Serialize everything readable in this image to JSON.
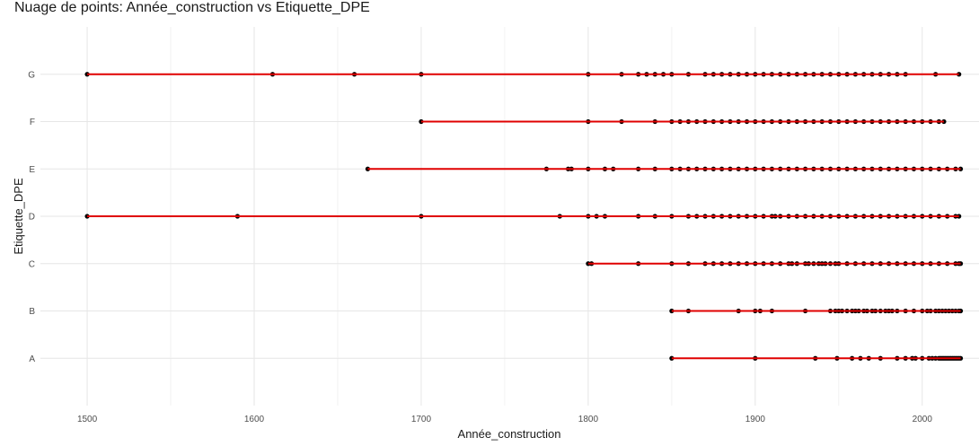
{
  "chart_data": {
    "type": "scatter",
    "title": "Nuage de points: Année_construction vs Etiquette_DPE",
    "xlabel": "Année_construction",
    "ylabel": "Etiquette_DPE",
    "xlim": [
      1472,
      2034
    ],
    "xticks": [
      1500,
      1600,
      1700,
      1800,
      1900,
      2000
    ],
    "categories": [
      "A",
      "B",
      "C",
      "D",
      "E",
      "F",
      "G"
    ],
    "grid": true,
    "point_color": "#000000",
    "line_color": "#e00000",
    "series": [
      {
        "category": "A",
        "x": [
          1850,
          1900,
          1936,
          1949,
          1958,
          1963,
          1968,
          1975,
          1985,
          1990,
          1994,
          1996,
          2000,
          2004,
          2006,
          2008,
          2010,
          2011,
          2012,
          2013,
          2014,
          2015,
          2016,
          2017,
          2018,
          2019,
          2020,
          2021,
          2022,
          2023
        ]
      },
      {
        "category": "B",
        "x": [
          1850,
          1860,
          1890,
          1900,
          1903,
          1910,
          1930,
          1945,
          1948,
          1950,
          1952,
          1955,
          1958,
          1960,
          1962,
          1965,
          1967,
          1970,
          1972,
          1975,
          1978,
          1980,
          1982,
          1985,
          1990,
          1995,
          2000,
          2003,
          2005,
          2008,
          2010,
          2012,
          2014,
          2016,
          2018,
          2020,
          2022,
          2023
        ]
      },
      {
        "category": "C",
        "x": [
          1800,
          1802,
          1830,
          1850,
          1860,
          1870,
          1875,
          1880,
          1885,
          1890,
          1895,
          1900,
          1905,
          1910,
          1915,
          1920,
          1922,
          1925,
          1930,
          1932,
          1935,
          1938,
          1940,
          1942,
          1945,
          1948,
          1950,
          1955,
          1960,
          1965,
          1970,
          1975,
          1980,
          1985,
          1990,
          1995,
          2000,
          2005,
          2010,
          2015,
          2020,
          2022,
          2023
        ]
      },
      {
        "category": "D",
        "x": [
          1500,
          1590,
          1700,
          1783,
          1800,
          1805,
          1810,
          1830,
          1840,
          1850,
          1860,
          1865,
          1870,
          1875,
          1880,
          1885,
          1890,
          1895,
          1900,
          1905,
          1910,
          1912,
          1915,
          1920,
          1925,
          1930,
          1935,
          1940,
          1945,
          1950,
          1955,
          1960,
          1965,
          1970,
          1975,
          1980,
          1985,
          1990,
          1995,
          2000,
          2005,
          2010,
          2015,
          2020,
          2022
        ]
      },
      {
        "category": "E",
        "x": [
          1668,
          1775,
          1788,
          1790,
          1800,
          1810,
          1815,
          1830,
          1840,
          1850,
          1855,
          1860,
          1865,
          1870,
          1875,
          1880,
          1885,
          1890,
          1895,
          1900,
          1905,
          1910,
          1915,
          1920,
          1925,
          1930,
          1935,
          1940,
          1945,
          1950,
          1955,
          1960,
          1965,
          1970,
          1975,
          1980,
          1985,
          1990,
          1995,
          2000,
          2005,
          2010,
          2015,
          2020,
          2023
        ]
      },
      {
        "category": "F",
        "x": [
          1700,
          1800,
          1820,
          1840,
          1850,
          1855,
          1860,
          1865,
          1870,
          1875,
          1880,
          1885,
          1890,
          1895,
          1900,
          1905,
          1910,
          1915,
          1920,
          1925,
          1930,
          1935,
          1940,
          1945,
          1950,
          1955,
          1960,
          1965,
          1970,
          1975,
          1980,
          1985,
          1990,
          1995,
          2000,
          2005,
          2010,
          2013
        ]
      },
      {
        "category": "G",
        "x": [
          1500,
          1611,
          1660,
          1700,
          1800,
          1820,
          1830,
          1835,
          1840,
          1845,
          1850,
          1860,
          1870,
          1875,
          1880,
          1885,
          1890,
          1895,
          1900,
          1905,
          1910,
          1915,
          1920,
          1925,
          1930,
          1935,
          1940,
          1945,
          1950,
          1955,
          1960,
          1965,
          1970,
          1975,
          1980,
          1985,
          1990,
          2008,
          2022
        ]
      }
    ]
  }
}
